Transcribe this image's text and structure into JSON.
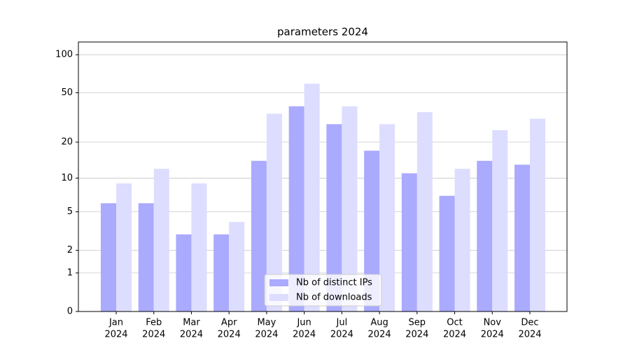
{
  "chart_data": {
    "type": "bar",
    "title": "parameters 2024",
    "categories": [
      [
        "Jan",
        "2024"
      ],
      [
        "Feb",
        "2024"
      ],
      [
        "Mar",
        "2024"
      ],
      [
        "Apr",
        "2024"
      ],
      [
        "May",
        "2024"
      ],
      [
        "Jun",
        "2024"
      ],
      [
        "Jul",
        "2024"
      ],
      [
        "Aug",
        "2024"
      ],
      [
        "Sep",
        "2024"
      ],
      [
        "Oct",
        "2024"
      ],
      [
        "Nov",
        "2024"
      ],
      [
        "Dec",
        "2024"
      ]
    ],
    "series": [
      {
        "name": "Nb of distinct IPs",
        "color": "#aaaaff",
        "values": [
          6,
          6,
          3,
          3,
          14,
          39,
          28,
          17,
          11,
          7,
          14,
          13
        ]
      },
      {
        "name": "Nb of downloads",
        "color": "#ddddff",
        "values": [
          9,
          12,
          9,
          4,
          34,
          59,
          39,
          28,
          35,
          12,
          25,
          31
        ]
      }
    ],
    "yscale": "log1p",
    "ylim": [
      0,
      126
    ],
    "yticks": [
      0,
      1,
      2,
      5,
      10,
      20,
      50,
      100
    ],
    "grid": true,
    "legend": "lower center"
  }
}
